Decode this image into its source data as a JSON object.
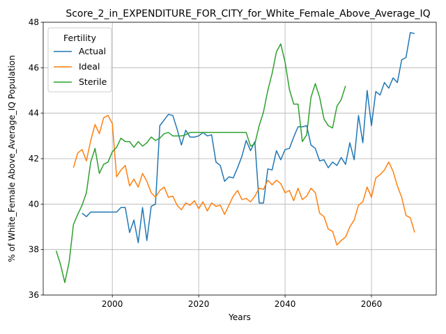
{
  "chart_data": {
    "type": "line",
    "title": "Score_2_in_EXPENDITURE_FOR_CITY_for_White_Female_Above_Average_IQ",
    "xlabel": "Years",
    "ylabel": "% of White_Female Above_Average_IQ Population",
    "xlim": [
      1984,
      2075
    ],
    "ylim": [
      36,
      48
    ],
    "xticks": [
      2000,
      2020,
      2040,
      2060
    ],
    "yticks": [
      36,
      38,
      40,
      42,
      44,
      46,
      48
    ],
    "grid": true,
    "legend": {
      "title": "Fertility",
      "placement": "top-left"
    },
    "series": [
      {
        "name": "Actual",
        "color": "#1f77b4",
        "x": [
          1993,
          1994,
          1995,
          1996,
          1997,
          1998,
          1999,
          2000,
          2001,
          2002,
          2003,
          2004,
          2005,
          2006,
          2007,
          2008,
          2009,
          2010,
          2011,
          2012,
          2013,
          2014,
          2015,
          2016,
          2017,
          2018,
          2019,
          2020,
          2021,
          2022,
          2023,
          2024,
          2025,
          2026,
          2027,
          2028,
          2029,
          2030,
          2031,
          2032,
          2033,
          2034,
          2035,
          2036,
          2037,
          2038,
          2039,
          2040,
          2041,
          2042,
          2043,
          2044,
          2045,
          2046,
          2047,
          2048,
          2049,
          2050,
          2051,
          2052,
          2053,
          2054,
          2055,
          2056,
          2057,
          2058,
          2059,
          2060,
          2061,
          2062,
          2063,
          2064,
          2065,
          2066,
          2067,
          2068,
          2069,
          2070
        ],
        "y": [
          39.6,
          39.45,
          39.65,
          39.65,
          39.65,
          39.65,
          39.65,
          39.65,
          39.65,
          39.85,
          39.85,
          38.75,
          39.3,
          38.3,
          39.85,
          38.4,
          39.9,
          40.0,
          43.45,
          43.7,
          43.95,
          43.9,
          43.3,
          42.6,
          43.25,
          42.95,
          42.95,
          43.0,
          43.15,
          43.0,
          43.05,
          41.85,
          41.7,
          41.0,
          41.2,
          41.15,
          41.6,
          42.1,
          42.8,
          42.35,
          42.75,
          40.05,
          40.05,
          41.55,
          41.5,
          42.35,
          41.95,
          42.4,
          42.45,
          42.95,
          43.4,
          43.4,
          43.45,
          42.6,
          42.45,
          41.9,
          41.95,
          41.6,
          41.85,
          41.7,
          42.05,
          41.75,
          42.7,
          41.95,
          43.9,
          42.7,
          45.0,
          43.45,
          44.95,
          44.8,
          45.35,
          45.1,
          45.55,
          45.35,
          46.35,
          46.45,
          47.55,
          47.5
        ]
      },
      {
        "name": "Ideal",
        "color": "#ff7f0e",
        "x": [
          1991,
          1992,
          1993,
          1994,
          1995,
          1996,
          1997,
          1998,
          1999,
          2000,
          2001,
          2002,
          2003,
          2004,
          2005,
          2006,
          2007,
          2008,
          2009,
          2010,
          2011,
          2012,
          2013,
          2014,
          2015,
          2016,
          2017,
          2018,
          2019,
          2020,
          2021,
          2022,
          2023,
          2024,
          2025,
          2026,
          2027,
          2028,
          2029,
          2030,
          2031,
          2032,
          2033,
          2034,
          2035,
          2036,
          2037,
          2038,
          2039,
          2040,
          2041,
          2042,
          2043,
          2044,
          2045,
          2046,
          2047,
          2048,
          2049,
          2050,
          2051,
          2052,
          2053,
          2054,
          2055,
          2056,
          2057,
          2058,
          2059,
          2060,
          2061,
          2062,
          2063,
          2064,
          2065,
          2066,
          2067,
          2068,
          2069,
          2070
        ],
        "y": [
          41.6,
          42.25,
          42.4,
          41.9,
          42.8,
          43.5,
          43.1,
          43.8,
          43.9,
          43.55,
          41.2,
          41.5,
          41.7,
          40.8,
          41.1,
          40.75,
          41.35,
          41.0,
          40.5,
          40.3,
          40.6,
          40.75,
          40.3,
          40.35,
          39.95,
          39.75,
          40.05,
          39.95,
          40.15,
          39.8,
          40.1,
          39.7,
          40.05,
          39.9,
          39.95,
          39.55,
          39.95,
          40.35,
          40.6,
          40.2,
          40.25,
          40.1,
          40.35,
          40.7,
          40.65,
          41.05,
          40.85,
          41.05,
          40.9,
          40.5,
          40.6,
          40.15,
          40.7,
          40.2,
          40.35,
          40.7,
          40.5,
          39.6,
          39.45,
          38.9,
          38.8,
          38.2,
          38.4,
          38.55,
          39.0,
          39.3,
          39.95,
          40.1,
          40.75,
          40.3,
          41.15,
          41.3,
          41.5,
          41.85,
          41.45,
          40.8,
          40.3,
          39.5,
          39.4,
          38.75
        ]
      },
      {
        "name": "Sterile",
        "color": "#2ca02c",
        "x": [
          1987,
          1988,
          1989,
          1990,
          1991,
          1992,
          1993,
          1994,
          1995,
          1996,
          1997,
          1998,
          1999,
          2000,
          2001,
          2002,
          2003,
          2004,
          2005,
          2006,
          2007,
          2008,
          2009,
          2010,
          2011,
          2012,
          2013,
          2014,
          2015,
          2016,
          2017,
          2018,
          2019,
          2020,
          2021,
          2022,
          2023,
          2024,
          2025,
          2026,
          2027,
          2028,
          2029,
          2030,
          2031,
          2032,
          2033,
          2034,
          2035,
          2036,
          2037,
          2038,
          2039,
          2040,
          2041,
          2042,
          2043,
          2044,
          2045,
          2046,
          2047,
          2048,
          2049,
          2050,
          2051,
          2052,
          2053,
          2054
        ],
        "y": [
          37.95,
          37.35,
          36.55,
          37.45,
          39.1,
          39.55,
          39.95,
          40.5,
          41.85,
          42.45,
          41.35,
          41.75,
          41.85,
          42.3,
          42.5,
          42.9,
          42.75,
          42.75,
          42.5,
          42.75,
          42.55,
          42.7,
          42.95,
          42.8,
          42.9,
          43.1,
          43.15,
          43.0,
          43.0,
          43.0,
          43.05,
          43.15,
          43.15,
          43.15,
          43.15,
          43.15,
          43.15,
          43.15,
          43.15,
          43.15,
          43.15,
          43.15,
          43.15,
          43.15,
          43.15,
          42.55,
          42.65,
          43.45,
          44.05,
          45.0,
          45.75,
          46.7,
          47.05,
          46.25,
          45.05,
          44.4,
          44.4,
          42.75,
          43.05,
          44.7,
          45.3,
          44.7,
          43.75,
          43.45,
          43.35,
          44.3,
          44.6,
          45.2
        ]
      }
    ]
  }
}
